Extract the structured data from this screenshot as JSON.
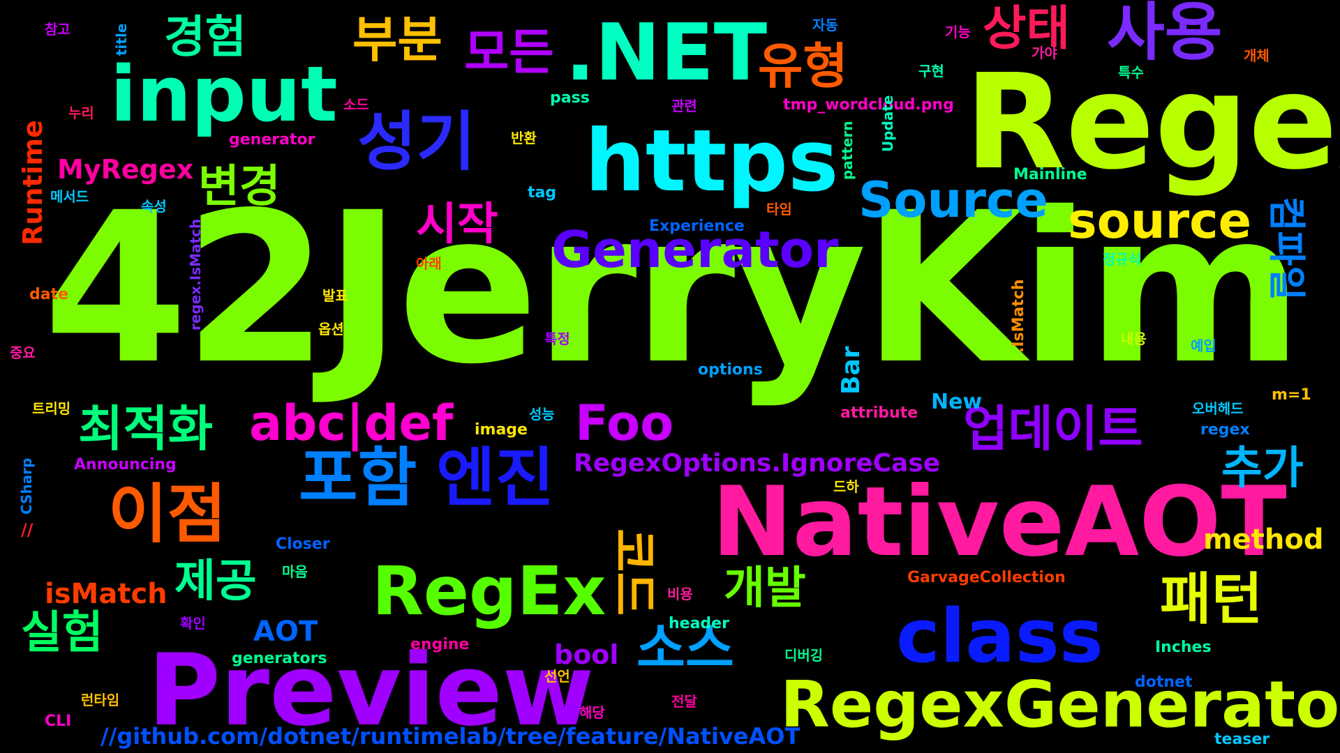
{
  "title": "Word cloud",
  "background": "#000000",
  "words": [
    {
      "text": "42JerryKim",
      "color": "#7cfc00"
    },
    {
      "text": "Regex",
      "color": "#b8ff00"
    },
    {
      "text": "NativeAOT",
      "color": "#ff1aa0"
    },
    {
      "text": "Preview",
      "color": "#a000ff"
    },
    {
      "text": "https",
      "color": "#00f5ff"
    },
    {
      "text": "input",
      "color": "#00ffb4"
    },
    {
      "text": ".NET",
      "color": "#00ffc0"
    },
    {
      "text": "class",
      "color": "#0a1cff"
    },
    {
      "text": "RegexGenerator",
      "color": "#ccff00"
    },
    {
      "text": "RegEx",
      "color": "#55ff00"
    },
    {
      "text": "사용",
      "color": "#7a2bff"
    },
    {
      "text": "성기",
      "color": "#2a2aff"
    },
    {
      "text": "이점",
      "color": "#ff5a00"
    },
    {
      "text": "포함",
      "color": "#0080ff"
    },
    {
      "text": "엔진",
      "color": "#1a1aff"
    },
    {
      "text": "경험",
      "color": "#00ffa0"
    },
    {
      "text": "부분",
      "color": "#ffc000"
    },
    {
      "text": "모든",
      "color": "#b000ff"
    },
    {
      "text": "유형",
      "color": "#ff5a00"
    },
    {
      "text": "상태",
      "color": "#ff1a5a"
    },
    {
      "text": "변경",
      "color": "#7cff00"
    },
    {
      "text": "시작",
      "color": "#ff00c8"
    },
    {
      "text": "Source",
      "color": "#00a0ff"
    },
    {
      "text": "source",
      "color": "#ffee00"
    },
    {
      "text": "Generator",
      "color": "#5a00ff"
    },
    {
      "text": "최적화",
      "color": "#00ff7a"
    },
    {
      "text": "abc|def",
      "color": "#ff00d0"
    },
    {
      "text": "Foo",
      "color": "#c800ff"
    },
    {
      "text": "업데이트",
      "color": "#9000ff"
    },
    {
      "text": "추가",
      "color": "#00b4ff"
    },
    {
      "text": "RegexOptions.IgnoreCase",
      "color": "#a000ff"
    },
    {
      "text": "패턴",
      "color": "#e6ff00"
    },
    {
      "text": "개발",
      "color": "#66ff00"
    },
    {
      "text": "제공",
      "color": "#00ff90"
    },
    {
      "text": "실험",
      "color": "#00ff60"
    },
    {
      "text": "소스",
      "color": "#00a0ff"
    },
    {
      "text": "코드",
      "color": "#ffb400"
    },
    {
      "text": "method",
      "color": "#ffe600"
    },
    {
      "text": "isMatch",
      "color": "#ff3c00"
    },
    {
      "text": "AOT",
      "color": "#0064ff"
    },
    {
      "text": "bool",
      "color": "#a000ff"
    },
    {
      "text": "MyRegex",
      "color": "#ff00a0"
    },
    {
      "text": "Runtime",
      "color": "#ff2a00"
    },
    {
      "text": "컴파일",
      "color": "#0080ff"
    },
    {
      "text": "Bar",
      "color": "#00c8ff"
    },
    {
      "text": "New",
      "color": "#00b4ff"
    },
    {
      "text": "//github.com/dotnet/runtimelab/tree/feature/NativeAOT",
      "color": "#0050ff"
    },
    {
      "text": "generator",
      "color": "#ff00c8"
    },
    {
      "text": "generators",
      "color": "#00ff90"
    },
    {
      "text": "engine",
      "color": "#ff00a0"
    },
    {
      "text": "header",
      "color": "#00ffc0"
    },
    {
      "text": "Closer",
      "color": "#0064ff"
    },
    {
      "text": "GarvageCollection",
      "color": "#ff3c00"
    },
    {
      "text": "Announcing",
      "color": "#c800ff"
    },
    {
      "text": "CSharp",
      "color": "#0080ff"
    },
    {
      "text": "image",
      "color": "#ffe600"
    },
    {
      "text": "attribute",
      "color": "#ff1aa0"
    },
    {
      "text": "options",
      "color": "#00a0ff"
    },
    {
      "text": "Experience",
      "color": "#0064ff"
    },
    {
      "text": "Mainline",
      "color": "#00ff90"
    },
    {
      "text": "tmp_wordcloud.png",
      "color": "#ff00c8"
    },
    {
      "text": "pass",
      "color": "#00ffb4"
    },
    {
      "text": "tag",
      "color": "#00c8ff"
    },
    {
      "text": "title",
      "color": "#00a0ff"
    },
    {
      "text": "date",
      "color": "#ff5a00"
    },
    {
      "text": "Update",
      "color": "#00ffc0"
    },
    {
      "text": "pattern",
      "color": "#00ff90"
    },
    {
      "text": "regex.IsMatch",
      "color": "#7a2bff"
    },
    {
      "text": ".IsMatch",
      "color": "#ff9000"
    },
    {
      "text": "m=1",
      "color": "#ffc000"
    },
    {
      "text": "regex",
      "color": "#0080ff"
    },
    {
      "text": "dotnet",
      "color": "#0064ff"
    },
    {
      "text": "Inches",
      "color": "#00ffa0"
    },
    {
      "text": "teaser",
      "color": "#00c8ff"
    },
    {
      "text": "CLI",
      "color": "#ff00c8"
    },
    {
      "text": "//",
      "color": "#ff1a1a"
    },
    {
      "text": "참고",
      "color": "#c800ff"
    },
    {
      "text": "누리",
      "color": "#ff1a5a"
    },
    {
      "text": "메서드",
      "color": "#00c8ff"
    },
    {
      "text": "속성",
      "color": "#00c8ff"
    },
    {
      "text": "소드",
      "color": "#ff00a0"
    },
    {
      "text": "반환",
      "color": "#ffe600"
    },
    {
      "text": "관련",
      "color": "#c800ff"
    },
    {
      "text": "자동",
      "color": "#0080ff"
    },
    {
      "text": "기능",
      "color": "#ff00c8"
    },
    {
      "text": "가야",
      "color": "#ff1aa0"
    },
    {
      "text": "개체",
      "color": "#ff5a00"
    },
    {
      "text": "구현",
      "color": "#00ffb4"
    },
    {
      "text": "특수",
      "color": "#00ff90"
    },
    {
      "text": "타임",
      "color": "#ff5a00"
    },
    {
      "text": "아래",
      "color": "#ff3c00"
    },
    {
      "text": "정규식",
      "color": "#00ffb4"
    },
    {
      "text": "발표",
      "color": "#ffe600"
    },
    {
      "text": "옵션",
      "color": "#ffe600"
    },
    {
      "text": "특정",
      "color": "#a000ff"
    },
    {
      "text": "내용",
      "color": "#ccff00"
    },
    {
      "text": "예입",
      "color": "#00a0ff"
    },
    {
      "text": "중요",
      "color": "#ff1aa0"
    },
    {
      "text": "트리밍",
      "color": "#ffe600"
    },
    {
      "text": "성능",
      "color": "#00c8ff"
    },
    {
      "text": "오버헤드",
      "color": "#00c8ff"
    },
    {
      "text": "드하",
      "color": "#ffe600"
    },
    {
      "text": "비용",
      "color": "#ff1aa0"
    },
    {
      "text": "확인",
      "color": "#a000ff"
    },
    {
      "text": "디버깅",
      "color": "#00ff90"
    },
    {
      "text": "선언",
      "color": "#ffc000"
    },
    {
      "text": "런타임",
      "color": "#ffc000"
    },
    {
      "text": "해당",
      "color": "#ff00c8"
    },
    {
      "text": "전달",
      "color": "#ff00a0"
    },
    {
      "text": "마음",
      "color": "#00ff90"
    }
  ]
}
